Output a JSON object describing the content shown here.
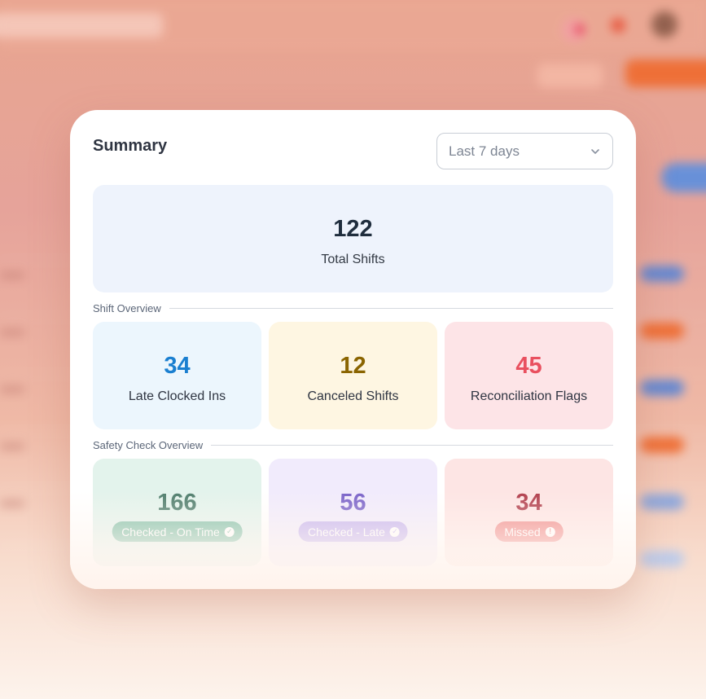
{
  "summary": {
    "title": "Summary",
    "date_range": {
      "selected": "Last 7 days"
    },
    "total": {
      "value": "122",
      "label": "Total Shifts"
    }
  },
  "shift_overview": {
    "heading": "Shift Overview",
    "tiles": [
      {
        "value": "34",
        "label": "Late Clocked Ins",
        "color": "#1a7fd0",
        "bg": "#ecf6fd"
      },
      {
        "value": "12",
        "label": "Canceled Shifts",
        "color": "#8a6400",
        "bg": "#fef6e2"
      },
      {
        "value": "45",
        "label": "Reconciliation Flags",
        "color": "#e9505f",
        "bg": "#fde4e7"
      }
    ]
  },
  "safety_check_overview": {
    "heading": "Safety Check Overview",
    "tiles": [
      {
        "value": "166",
        "badge": "Checked - On Time",
        "badge_icon": "check-circle-icon",
        "color": "#4f7d6c",
        "bg": "#e3f3ec",
        "badge_bg": "#7fbfa6"
      },
      {
        "value": "56",
        "badge": "Checked - Late",
        "badge_icon": "check-circle-icon",
        "color": "#7a63c9",
        "bg": "#f1ebfc",
        "badge_bg": "#c4b2ef"
      },
      {
        "value": "34",
        "badge": "Missed",
        "badge_icon": "alert-circle-icon",
        "color": "#b13e4c",
        "bg": "#fde5e4",
        "badge_bg": "#f08a8a"
      }
    ]
  }
}
